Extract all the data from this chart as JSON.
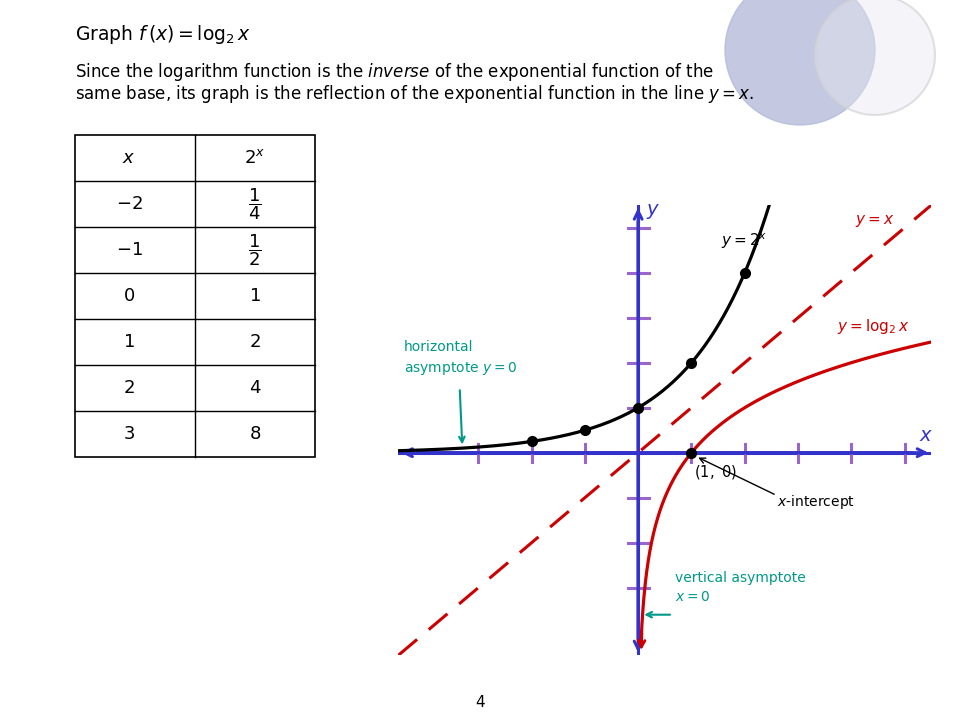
{
  "bg_color": "#ffffff",
  "axis_color": "#3333cc",
  "tick_color": "#9966cc",
  "exp_color": "#000000",
  "log_color": "#cc0000",
  "line_y_eq_x_color": "#cc0000",
  "annotation_color": "#009988",
  "circle_color1": "#b0b8d8",
  "circle_color2": "#e8e8f0",
  "xlim": [
    -4.5,
    5.5
  ],
  "ylim": [
    -4.5,
    5.5
  ]
}
